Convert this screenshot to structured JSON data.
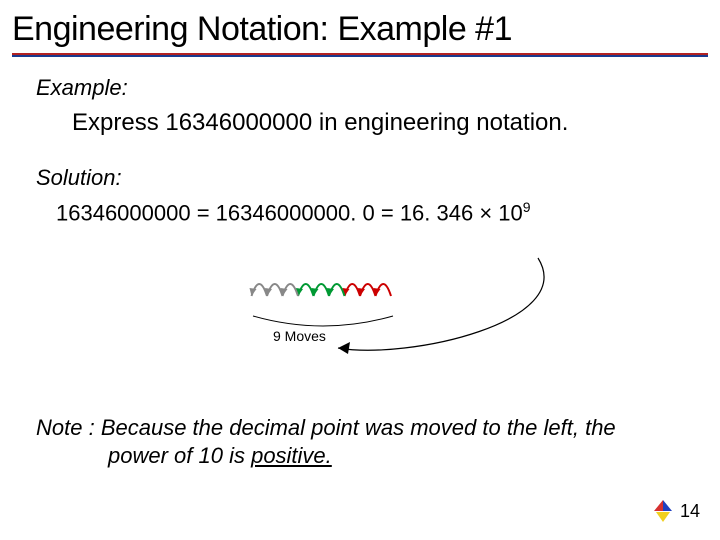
{
  "title": "Engineering Notation: Example #1",
  "underline_colors": {
    "top": "#b22222",
    "bottom": "#1a3a8f"
  },
  "example_label": "Example:",
  "problem": "Express 16346000000 in engineering notation.",
  "solution_label": "Solution:",
  "equation": {
    "lhs": "16346000000",
    "eq1": " = ",
    "mid": "16346000000. 0",
    "eq2": " = ",
    "rhs_base": "16. 346 × 10",
    "rhs_exp": "9"
  },
  "moves_arcs": {
    "count": 9,
    "colors": [
      "#cc0000",
      "#009933",
      "#888888"
    ],
    "label": "9 Moves"
  },
  "big_arrow_color": "#000000",
  "note_prefix": "Note : ",
  "note_line1": "Because the decimal point was moved to the left, the",
  "note_line2_a": "power of 10 is ",
  "note_line2_b": "positive.",
  "slide_number": "14",
  "logo_colors": {
    "a": "#d63030",
    "b": "#2040c0",
    "c": "#f0d020"
  }
}
